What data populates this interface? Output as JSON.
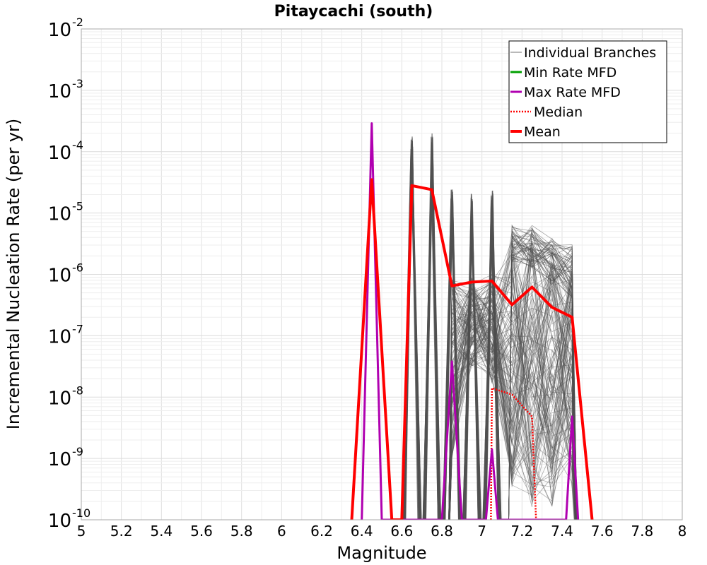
{
  "chart_data": {
    "type": "line",
    "title": "Pitaycachi (south)",
    "xlabel": "Magnitude",
    "ylabel": "Incremental Nucleation Rate (per yr)",
    "y_scale": "log",
    "xlim": [
      5,
      8
    ],
    "ylim": [
      1e-10,
      0.01
    ],
    "x_ticks": [
      "5",
      "5.2",
      "5.4",
      "5.6",
      "5.8",
      "6",
      "6.2",
      "6.4",
      "6.6",
      "6.8",
      "7",
      "7.2",
      "7.4",
      "7.6",
      "7.8",
      "8"
    ],
    "y_ticks": [
      {
        "base": "10",
        "exp": "-2",
        "value": 0.01
      },
      {
        "base": "10",
        "exp": "-3",
        "value": 0.001
      },
      {
        "base": "10",
        "exp": "-4",
        "value": 0.0001
      },
      {
        "base": "10",
        "exp": "-5",
        "value": 1e-05
      },
      {
        "base": "10",
        "exp": "-6",
        "value": 1e-06
      },
      {
        "base": "10",
        "exp": "-7",
        "value": 1e-07
      },
      {
        "base": "10",
        "exp": "-8",
        "value": 1e-08
      },
      {
        "base": "10",
        "exp": "-9",
        "value": 1e-09
      },
      {
        "base": "10",
        "exp": "-10",
        "value": 1e-10
      }
    ],
    "grid": true,
    "legend_position": "top-right",
    "series": [
      {
        "name": "Mean",
        "color": "#ff0000",
        "style": "solid",
        "x": [
          6.35,
          6.45,
          6.55,
          6.6,
          6.65,
          6.75,
          6.85,
          6.95,
          7.05,
          7.15,
          7.25,
          7.35,
          7.45,
          7.55
        ],
        "y": [
          1e-10,
          3.5e-05,
          1e-10,
          1e-10,
          2.8e-05,
          2.4e-05,
          6.5e-07,
          7.5e-07,
          7.8e-07,
          3.2e-07,
          6.2e-07,
          2.9e-07,
          2e-07,
          1e-10
        ]
      },
      {
        "name": "Median",
        "color": "#ff0000",
        "style": "dotted",
        "x": [
          7.045,
          7.05,
          7.15,
          7.25,
          7.27
        ],
        "y": [
          1e-10,
          1.4e-08,
          1.1e-08,
          4.8e-09,
          1e-10
        ]
      },
      {
        "name": "Max Rate MFD",
        "color": "#b000b0",
        "style": "solid",
        "x": [
          6.4,
          6.45,
          6.5,
          6.8,
          6.85,
          6.9,
          7.02,
          7.05,
          7.08,
          7.42,
          7.45,
          7.48
        ],
        "y": [
          1e-10,
          0.00029,
          1e-10,
          1e-10,
          3.8e-08,
          1e-10,
          1e-10,
          1.4e-09,
          1e-10,
          1e-10,
          4.8e-09,
          1e-10
        ]
      },
      {
        "name": "Min Rate MFD",
        "color": "#00a000",
        "style": "solid",
        "x": [],
        "y": []
      },
      {
        "name": "Individual Branches",
        "color": "#505050",
        "style": "thin"
      }
    ]
  }
}
